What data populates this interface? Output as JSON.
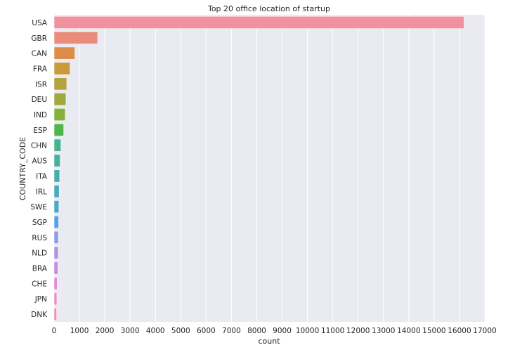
{
  "chart_data": {
    "type": "bar",
    "orientation": "horizontal",
    "title": "Top 20 office location of startup",
    "xlabel": "count",
    "ylabel": "COUNTRY_CODE",
    "categories": [
      "USA",
      "GBR",
      "CAN",
      "FRA",
      "ISR",
      "DEU",
      "IND",
      "ESP",
      "CHN",
      "AUS",
      "ITA",
      "IRL",
      "SWE",
      "SGP",
      "RUS",
      "NLD",
      "BRA",
      "CHE",
      "JPN",
      "DNK"
    ],
    "values": [
      16180,
      1720,
      820,
      630,
      500,
      470,
      440,
      380,
      270,
      240,
      220,
      200,
      190,
      180,
      170,
      160,
      150,
      120,
      110,
      100
    ],
    "xlim": [
      0,
      17000
    ],
    "xticks": [
      "0",
      "1000",
      "2000",
      "3000",
      "4000",
      "5000",
      "6000",
      "7000",
      "8000",
      "9000",
      "10000",
      "11000",
      "12000",
      "13000",
      "14000",
      "15000",
      "16000",
      "17000"
    ],
    "grid": true,
    "colors": [
      "#f0919f",
      "#ea8c7c",
      "#db8d49",
      "#c99b3a",
      "#b4a33c",
      "#9fa93d",
      "#84b03c",
      "#4eb64a",
      "#44b58c",
      "#46b1a0",
      "#45aeae",
      "#47abba",
      "#4aa8c9",
      "#57a2e0",
      "#8d9de5",
      "#ab93e6",
      "#cb8ae2",
      "#e487d9",
      "#ec88c5",
      "#f08db2"
    ]
  }
}
